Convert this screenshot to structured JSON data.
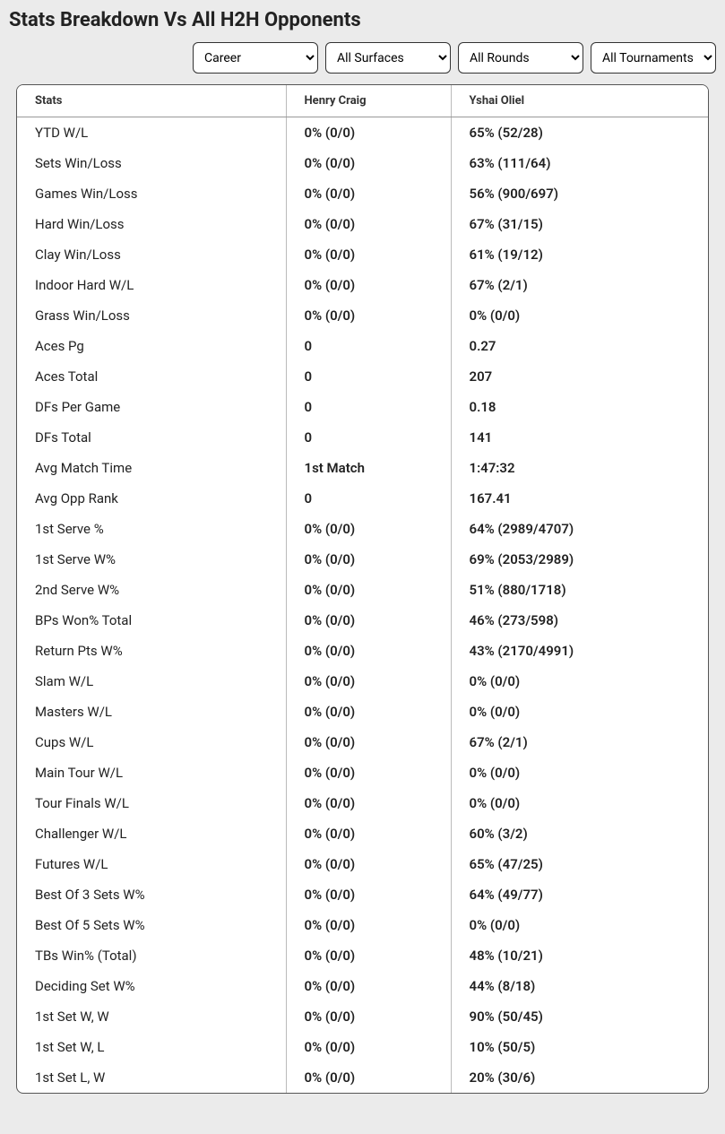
{
  "title": "Stats Breakdown Vs All H2H Opponents",
  "filters": {
    "career": "Career",
    "surface": "All Surfaces",
    "round": "All Rounds",
    "tournament": "All Tournaments"
  },
  "columns": {
    "stats": "Stats",
    "player1": "Henry Craig",
    "player2": "Yshai Oliel"
  },
  "rows": [
    {
      "stat": "YTD W/L",
      "p1": "0% (0/0)",
      "p2": "65% (52/28)"
    },
    {
      "stat": "Sets Win/Loss",
      "p1": "0% (0/0)",
      "p2": "63% (111/64)"
    },
    {
      "stat": "Games Win/Loss",
      "p1": "0% (0/0)",
      "p2": "56% (900/697)"
    },
    {
      "stat": "Hard Win/Loss",
      "p1": "0% (0/0)",
      "p2": "67% (31/15)"
    },
    {
      "stat": "Clay Win/Loss",
      "p1": "0% (0/0)",
      "p2": "61% (19/12)"
    },
    {
      "stat": "Indoor Hard W/L",
      "p1": "0% (0/0)",
      "p2": "67% (2/1)"
    },
    {
      "stat": "Grass Win/Loss",
      "p1": "0% (0/0)",
      "p2": "0% (0/0)"
    },
    {
      "stat": "Aces Pg",
      "p1": "0",
      "p2": "0.27"
    },
    {
      "stat": "Aces Total",
      "p1": "0",
      "p2": "207"
    },
    {
      "stat": "DFs Per Game",
      "p1": "0",
      "p2": "0.18"
    },
    {
      "stat": "DFs Total",
      "p1": "0",
      "p2": "141"
    },
    {
      "stat": "Avg Match Time",
      "p1": "1st Match",
      "p2": "1:47:32"
    },
    {
      "stat": "Avg Opp Rank",
      "p1": "0",
      "p2": "167.41"
    },
    {
      "stat": "1st Serve %",
      "p1": "0% (0/0)",
      "p2": "64% (2989/4707)"
    },
    {
      "stat": "1st Serve W%",
      "p1": "0% (0/0)",
      "p2": "69% (2053/2989)"
    },
    {
      "stat": "2nd Serve W%",
      "p1": "0% (0/0)",
      "p2": "51% (880/1718)"
    },
    {
      "stat": "BPs Won% Total",
      "p1": "0% (0/0)",
      "p2": "46% (273/598)"
    },
    {
      "stat": "Return Pts W%",
      "p1": "0% (0/0)",
      "p2": "43% (2170/4991)"
    },
    {
      "stat": "Slam W/L",
      "p1": "0% (0/0)",
      "p2": "0% (0/0)"
    },
    {
      "stat": "Masters W/L",
      "p1": "0% (0/0)",
      "p2": "0% (0/0)"
    },
    {
      "stat": "Cups W/L",
      "p1": "0% (0/0)",
      "p2": "67% (2/1)"
    },
    {
      "stat": "Main Tour W/L",
      "p1": "0% (0/0)",
      "p2": "0% (0/0)"
    },
    {
      "stat": "Tour Finals W/L",
      "p1": "0% (0/0)",
      "p2": "0% (0/0)"
    },
    {
      "stat": "Challenger W/L",
      "p1": "0% (0/0)",
      "p2": "60% (3/2)"
    },
    {
      "stat": "Futures W/L",
      "p1": "0% (0/0)",
      "p2": "65% (47/25)"
    },
    {
      "stat": "Best Of 3 Sets W%",
      "p1": "0% (0/0)",
      "p2": "64% (49/77)"
    },
    {
      "stat": "Best Of 5 Sets W%",
      "p1": "0% (0/0)",
      "p2": "0% (0/0)"
    },
    {
      "stat": "TBs Win% (Total)",
      "p1": "0% (0/0)",
      "p2": "48% (10/21)"
    },
    {
      "stat": "Deciding Set W%",
      "p1": "0% (0/0)",
      "p2": "44% (8/18)"
    },
    {
      "stat": "1st Set W, W",
      "p1": "0% (0/0)",
      "p2": "90% (50/45)"
    },
    {
      "stat": "1st Set W, L",
      "p1": "0% (0/0)",
      "p2": "10% (50/5)"
    },
    {
      "stat": "1st Set L, W",
      "p1": "0% (0/0)",
      "p2": "20% (30/6)"
    }
  ]
}
